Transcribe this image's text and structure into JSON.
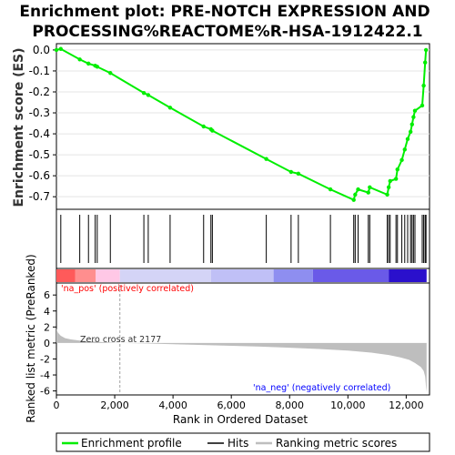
{
  "chart_data": {
    "type": "line",
    "title_line1": "Enrichment plot: PRE-NOTCH EXPRESSION AND",
    "title_line2": "PROCESSING%REACTOME%R-HSA-1912422.1",
    "es_ylabel": "Enrichment score (ES)",
    "metric_ylabel": "Ranked list metric (PreRanked)",
    "xlabel": "Rank in Ordered Dataset",
    "xlim": [
      0,
      12800
    ],
    "es_ylim": [
      -0.76,
      0.03
    ],
    "metric_ylim": [
      -6.5,
      7.5
    ],
    "x_ticks": [
      0,
      2000,
      4000,
      6000,
      8000,
      10000,
      12000
    ],
    "x_tick_labels": [
      "0",
      "2,000",
      "4,000",
      "6,000",
      "8,000",
      "10,000",
      "12,000"
    ],
    "es_ticks": [
      0.0,
      -0.1,
      -0.2,
      -0.3,
      -0.4,
      -0.5,
      -0.6,
      -0.7
    ],
    "es_tick_labels": [
      "0.0",
      "-0.1",
      "-0.2",
      "-0.3",
      "-0.4",
      "-0.5",
      "-0.6",
      "-0.7"
    ],
    "metric_ticks": [
      6,
      4,
      2,
      0,
      -2,
      -4,
      -6
    ],
    "metric_tick_labels": [
      "6",
      "4",
      "2",
      "0",
      "-2",
      "-4",
      "-6"
    ],
    "zero_cross_label": "Zero cross at 2177",
    "zero_cross_rank": 2177,
    "pos_label": "'na_pos' (positively correlated)",
    "neg_label": "'na_neg' (negatively correlated)",
    "legend": {
      "placement": "bottom",
      "items": [
        "Enrichment profile",
        "Hits",
        "Ranking metric scores"
      ]
    },
    "colors": {
      "profile": "#00ee00",
      "hits": "#000000",
      "metric_fill": "#bebebe",
      "pos_label": "#ff0000",
      "neg_label": "#0000ff",
      "zero_line": "#a0a0a0"
    },
    "hits": [
      150,
      800,
      1100,
      1330,
      1400,
      1850,
      3000,
      3150,
      3900,
      5050,
      5300,
      5350,
      7200,
      8050,
      8300,
      9400,
      10200,
      10250,
      10350,
      10700,
      10750,
      11350,
      11400,
      11450,
      11650,
      11700,
      11850,
      11950,
      12050,
      12150,
      12200,
      12250,
      12300,
      12550,
      12600,
      12650,
      12680
    ],
    "es_profile": {
      "x": [
        0,
        150,
        800,
        1100,
        1330,
        1400,
        1850,
        3000,
        3150,
        3900,
        5050,
        5300,
        5350,
        7200,
        8050,
        8300,
        9400,
        10200,
        10250,
        10350,
        10700,
        10750,
        11350,
        11400,
        11450,
        11650,
        11700,
        11850,
        11950,
        12050,
        12150,
        12200,
        12250,
        12300,
        12550,
        12600,
        12650,
        12680
      ],
      "y": [
        0.0,
        0.005,
        -0.045,
        -0.065,
        -0.075,
        -0.08,
        -0.11,
        -0.205,
        -0.215,
        -0.275,
        -0.365,
        -0.378,
        -0.385,
        -0.52,
        -0.582,
        -0.59,
        -0.665,
        -0.715,
        -0.69,
        -0.665,
        -0.68,
        -0.655,
        -0.69,
        -0.655,
        -0.625,
        -0.615,
        -0.57,
        -0.525,
        -0.475,
        -0.425,
        -0.39,
        -0.355,
        -0.32,
        -0.29,
        -0.265,
        -0.17,
        -0.06,
        0.0
      ]
    },
    "metric_profile": {
      "x": [
        0,
        50,
        150,
        300,
        500,
        800,
        1200,
        1600,
        2000,
        2177,
        3000,
        4000,
        5000,
        6000,
        7000,
        8000,
        9000,
        10000,
        10800,
        11400,
        11800,
        12100,
        12300,
        12500,
        12600,
        12650,
        12680,
        12700
      ],
      "y": [
        1.8,
        1.3,
        0.9,
        0.6,
        0.45,
        0.3,
        0.2,
        0.1,
        0.03,
        0.0,
        -0.06,
        -0.15,
        -0.25,
        -0.35,
        -0.45,
        -0.6,
        -0.75,
        -0.95,
        -1.2,
        -1.5,
        -1.8,
        -2.1,
        -2.5,
        -3.0,
        -3.5,
        -4.2,
        -5.5,
        -6.1
      ]
    },
    "color_band": [
      {
        "from": 0,
        "to": 650,
        "color": "#ff5a5a"
      },
      {
        "from": 650,
        "to": 1350,
        "color": "#ff8e8e"
      },
      {
        "from": 1350,
        "to": 2177,
        "color": "#ffc8e6"
      },
      {
        "from": 2177,
        "to": 5300,
        "color": "#d4d4f6"
      },
      {
        "from": 5300,
        "to": 7450,
        "color": "#c0c0f6"
      },
      {
        "from": 7450,
        "to": 8800,
        "color": "#8e8ef0"
      },
      {
        "from": 8800,
        "to": 11400,
        "color": "#6a5ae8"
      },
      {
        "from": 11400,
        "to": 12700,
        "color": "#2a10cc"
      }
    ]
  }
}
